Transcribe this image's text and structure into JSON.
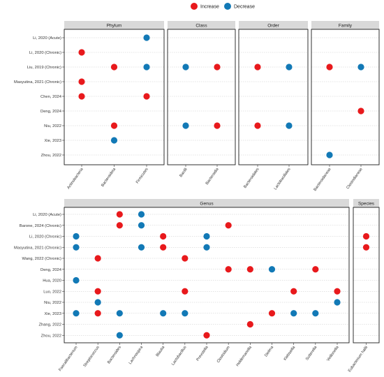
{
  "legend": {
    "items": [
      {
        "label": "Increase",
        "color": "#e8191c"
      },
      {
        "label": "Decrease",
        "color": "#1279b6"
      }
    ]
  },
  "chart_data": [
    {
      "type": "scatter",
      "title": "",
      "facet_row": "top",
      "y_categories": [
        "Li, 2020 (Acute)",
        "Li, 2020 (Chronic)",
        "Liu, 2019 (Chronic)",
        "Masyutina, 2021 (Chronic)",
        "Chen, 2024",
        "Deng, 2024",
        "Niu, 2022",
        "Xie, 2023",
        "Zhou, 2022"
      ],
      "facets": [
        {
          "label": "Phylum",
          "x_categories": [
            "Actinobacteria",
            "Bacteroidota",
            "Firmicutes"
          ],
          "points": [
            {
              "x": "Firmicutes",
              "y": "Li, 2020 (Acute)",
              "direction": "Decrease"
            },
            {
              "x": "Actinobacteria",
              "y": "Li, 2020 (Chronic)",
              "direction": "Increase"
            },
            {
              "x": "Bacteroidota",
              "y": "Liu, 2019 (Chronic)",
              "direction": "Increase"
            },
            {
              "x": "Firmicutes",
              "y": "Liu, 2019 (Chronic)",
              "direction": "Decrease"
            },
            {
              "x": "Actinobacteria",
              "y": "Masyutina, 2021 (Chronic)",
              "direction": "Increase"
            },
            {
              "x": "Actinobacteria",
              "y": "Chen, 2024",
              "direction": "Increase"
            },
            {
              "x": "Firmicutes",
              "y": "Chen, 2024",
              "direction": "Increase"
            },
            {
              "x": "Bacteroidota",
              "y": "Niu, 2022",
              "direction": "Increase"
            },
            {
              "x": "Bacteroidota",
              "y": "Xie, 2023",
              "direction": "Decrease"
            }
          ]
        },
        {
          "label": "Class",
          "x_categories": [
            "Bacilli",
            "Bacteroidia"
          ],
          "points": [
            {
              "x": "Bacilli",
              "y": "Liu, 2019 (Chronic)",
              "direction": "Decrease"
            },
            {
              "x": "Bacteroidia",
              "y": "Liu, 2019 (Chronic)",
              "direction": "Increase"
            },
            {
              "x": "Bacilli",
              "y": "Niu, 2022",
              "direction": "Decrease"
            },
            {
              "x": "Bacteroidia",
              "y": "Niu, 2022",
              "direction": "Increase"
            }
          ]
        },
        {
          "label": "Order",
          "x_categories": [
            "Bacteroidales",
            "Lactobacillales"
          ],
          "points": [
            {
              "x": "Bacteroidales",
              "y": "Liu, 2019 (Chronic)",
              "direction": "Increase"
            },
            {
              "x": "Lactobacillales",
              "y": "Liu, 2019 (Chronic)",
              "direction": "Decrease"
            },
            {
              "x": "Bacteroidales",
              "y": "Niu, 2022",
              "direction": "Increase"
            },
            {
              "x": "Lactobacillales",
              "y": "Niu, 2022",
              "direction": "Decrease"
            }
          ]
        },
        {
          "label": "Family",
          "x_categories": [
            "Bacteroidaceae",
            "Clostridiaceae"
          ],
          "points": [
            {
              "x": "Bacteroidaceae",
              "y": "Liu, 2019 (Chronic)",
              "direction": "Increase"
            },
            {
              "x": "Clostridiaceae",
              "y": "Liu, 2019 (Chronic)",
              "direction": "Decrease"
            },
            {
              "x": "Clostridiaceae",
              "y": "Deng, 2024",
              "direction": "Increase"
            },
            {
              "x": "Bacteroidaceae",
              "y": "Zhou, 2022",
              "direction": "Decrease"
            }
          ]
        }
      ]
    },
    {
      "type": "scatter",
      "title": "",
      "facet_row": "bottom",
      "y_categories": [
        "Li, 2020 (Acute)",
        "Barone, 2024 (Chronic)",
        "Li, 2020 (Chronic)",
        "Masyutina, 2021 (Chronic)",
        "Wang, 2022 (Chronic)",
        "Deng, 2024",
        "Hua, 2020",
        "Luo, 2022",
        "Niu, 2022",
        "Xie, 2023",
        "Zhang, 2022",
        "Zhou, 2022"
      ],
      "facets": [
        {
          "label": "Genus",
          "x_categories": [
            "Faecalibacterium",
            "Streptococcus",
            "Bacteroides",
            "Lachnospira",
            "Blautia",
            "Lactobacillus",
            "Prevotella",
            "Clostridium",
            "Holdemanella",
            "Dielma",
            "Klebsiella",
            "Sutterella",
            "Veillonella"
          ],
          "points": [
            {
              "x": "Bacteroides",
              "y": "Li, 2020 (Acute)",
              "direction": "Increase"
            },
            {
              "x": "Lachnospira",
              "y": "Li, 2020 (Acute)",
              "direction": "Decrease"
            },
            {
              "x": "Bacteroides",
              "y": "Barone, 2024 (Chronic)",
              "direction": "Increase"
            },
            {
              "x": "Lachnospira",
              "y": "Barone, 2024 (Chronic)",
              "direction": "Decrease"
            },
            {
              "x": "Clostridium",
              "y": "Barone, 2024 (Chronic)",
              "direction": "Increase"
            },
            {
              "x": "Faecalibacterium",
              "y": "Li, 2020 (Chronic)",
              "direction": "Decrease"
            },
            {
              "x": "Blautia",
              "y": "Li, 2020 (Chronic)",
              "direction": "Increase"
            },
            {
              "x": "Prevotella",
              "y": "Li, 2020 (Chronic)",
              "direction": "Decrease"
            },
            {
              "x": "Faecalibacterium",
              "y": "Masyutina, 2021 (Chronic)",
              "direction": "Decrease"
            },
            {
              "x": "Lachnospira",
              "y": "Masyutina, 2021 (Chronic)",
              "direction": "Decrease"
            },
            {
              "x": "Blautia",
              "y": "Masyutina, 2021 (Chronic)",
              "direction": "Increase"
            },
            {
              "x": "Prevotella",
              "y": "Masyutina, 2021 (Chronic)",
              "direction": "Decrease"
            },
            {
              "x": "Streptococcus",
              "y": "Wang, 2022 (Chronic)",
              "direction": "Increase"
            },
            {
              "x": "Lactobacillus",
              "y": "Wang, 2022 (Chronic)",
              "direction": "Increase"
            },
            {
              "x": "Clostridium",
              "y": "Deng, 2024",
              "direction": "Increase"
            },
            {
              "x": "Holdemanella",
              "y": "Deng, 2024",
              "direction": "Increase"
            },
            {
              "x": "Dielma",
              "y": "Deng, 2024",
              "direction": "Decrease"
            },
            {
              "x": "Sutterella",
              "y": "Deng, 2024",
              "direction": "Increase"
            },
            {
              "x": "Faecalibacterium",
              "y": "Hua, 2020",
              "direction": "Decrease"
            },
            {
              "x": "Streptococcus",
              "y": "Luo, 2022",
              "direction": "Increase"
            },
            {
              "x": "Lactobacillus",
              "y": "Luo, 2022",
              "direction": "Increase"
            },
            {
              "x": "Klebsiella",
              "y": "Luo, 2022",
              "direction": "Increase"
            },
            {
              "x": "Veillonella",
              "y": "Luo, 2022",
              "direction": "Increase"
            },
            {
              "x": "Streptococcus",
              "y": "Niu, 2022",
              "direction": "Decrease"
            },
            {
              "x": "Veillonella",
              "y": "Niu, 2022",
              "direction": "Decrease"
            },
            {
              "x": "Faecalibacterium",
              "y": "Xie, 2023",
              "direction": "Decrease"
            },
            {
              "x": "Streptococcus",
              "y": "Xie, 2023",
              "direction": "Increase"
            },
            {
              "x": "Bacteroides",
              "y": "Xie, 2023",
              "direction": "Decrease"
            },
            {
              "x": "Blautia",
              "y": "Xie, 2023",
              "direction": "Decrease"
            },
            {
              "x": "Lactobacillus",
              "y": "Xie, 2023",
              "direction": "Decrease"
            },
            {
              "x": "Dielma",
              "y": "Xie, 2023",
              "direction": "Increase"
            },
            {
              "x": "Klebsiella",
              "y": "Xie, 2023",
              "direction": "Decrease"
            },
            {
              "x": "Sutterella",
              "y": "Xie, 2023",
              "direction": "Decrease"
            },
            {
              "x": "Holdemanella",
              "y": "Zhang, 2022",
              "direction": "Increase"
            },
            {
              "x": "Bacteroides",
              "y": "Zhou, 2022",
              "direction": "Decrease"
            },
            {
              "x": "Prevotella",
              "y": "Zhou, 2022",
              "direction": "Increase"
            }
          ]
        },
        {
          "label": "Species",
          "x_categories": [
            "Eubacterium hallii"
          ],
          "points": [
            {
              "x": "Eubacterium hallii",
              "y": "Li, 2020 (Chronic)",
              "direction": "Increase"
            },
            {
              "x": "Eubacterium hallii",
              "y": "Masyutina, 2021 (Chronic)",
              "direction": "Increase"
            }
          ]
        }
      ]
    }
  ]
}
